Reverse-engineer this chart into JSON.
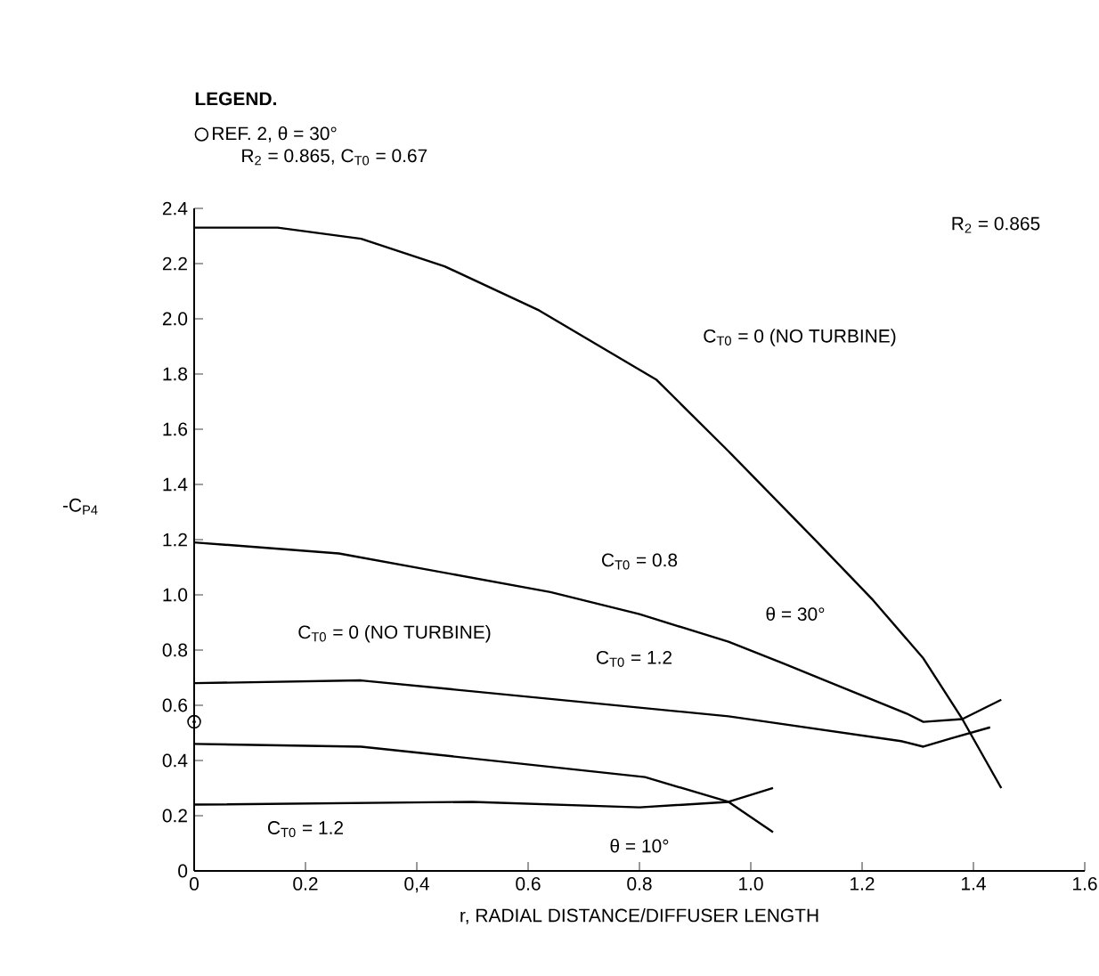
{
  "chart_data": {
    "type": "line",
    "xlabel": "r, RADIAL DISTANCE/DIFFUSER LENGTH",
    "ylabel": "-C$_{P4}$",
    "legend_title": "LEGEND.",
    "xlim": [
      0,
      1.6
    ],
    "ylim": [
      0,
      2.4
    ],
    "xticks": [
      0,
      0.2,
      {
        "value": 0.4,
        "label": "0,4"
      },
      0.6,
      0.8,
      {
        "value": 1,
        "label": "1.0"
      },
      1.2,
      1.4,
      1.6
    ],
    "yticks": [
      0,
      0.2,
      0.4,
      0.6,
      0.8,
      {
        "value": 1,
        "label": "1.0"
      },
      1.2,
      1.4,
      1.6,
      1.8,
      {
        "value": 2,
        "label": "2.0"
      },
      2.2,
      2.4
    ],
    "legend": "top left",
    "grid": false,
    "series": [
      {
        "color": "#000000",
        "x": [
          0,
          0.15,
          0.3,
          0.45,
          0.62,
          0.83,
          0.96,
          1.12,
          1.22,
          1.31,
          1.38,
          1.45
        ],
        "values": [
          2.33,
          2.33,
          2.29,
          2.19,
          2.03,
          1.78,
          1.52,
          1.19,
          0.98,
          0.77,
          0.55,
          0.3
        ]
      },
      {
        "color": "#000000",
        "x": [
          0,
          0.26,
          0.64,
          0.8,
          0.96,
          1.06,
          1.28,
          1.31,
          1.38,
          1.45
        ],
        "values": [
          1.19,
          1.15,
          1.01,
          0.93,
          0.83,
          0.75,
          0.57,
          0.54,
          0.55,
          0.62
        ]
      },
      {
        "color": "#000000",
        "x": [
          0,
          0.3,
          0.96,
          1.03,
          1.27,
          1.31,
          1.36,
          1.43
        ],
        "values": [
          0.68,
          0.69,
          0.56,
          0.54,
          0.47,
          0.45,
          0.48,
          0.52
        ]
      },
      {
        "color": "#000000",
        "x": [
          0,
          0.3,
          0.58,
          0.81,
          0.96,
          1.04
        ],
        "values": [
          0.46,
          0.45,
          0.39,
          0.34,
          0.25,
          0.14
        ]
      },
      {
        "color": "#000000",
        "x": [
          0,
          0.5,
          0.8,
          0.96,
          1.04
        ],
        "values": [
          0.24,
          0.25,
          0.23,
          0.25,
          0.3
        ]
      },
      {
        "type": "scatter",
        "name": "REF. 2, θ = 30°",
        "marker": "circle",
        "color": "#000000",
        "x": [
          0
        ],
        "values": [
          0.54
        ]
      }
    ],
    "annotations": [
      "R$_{2}$ = 0.865, C$_{T0}$ = 0.67",
      "R$_{2}$ = 0.865",
      "C$_{T0}$ = 0 (NO TURBINE)",
      "C$_{T0}$ = 0.8",
      "θ = 30°",
      "C$_{T0}$ = 1.2",
      "C$_{T0}$ = 0 (NO TURBINE)",
      "C$_{T0}$ = 1.2",
      "θ = 10°"
    ]
  }
}
